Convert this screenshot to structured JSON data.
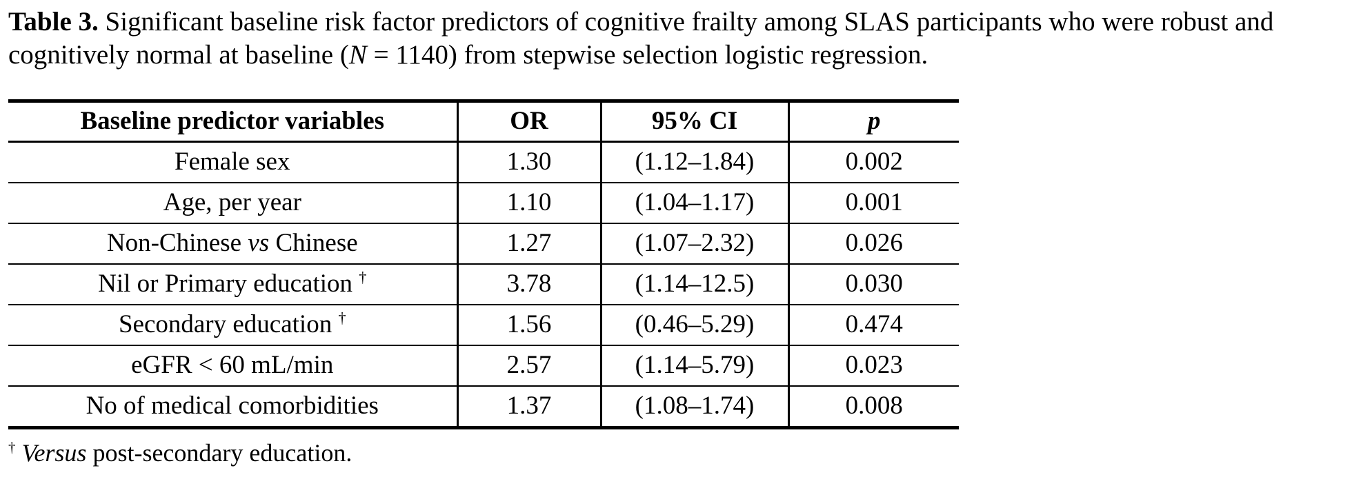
{
  "page": {
    "background": "#ffffff",
    "text_color": "#000000",
    "rule_color": "#000000"
  },
  "caption": {
    "label": "Table 3.",
    "seg1": " Significant baseline risk factor predictors of cognitive frailty among SLAS participants who were robust and cognitively normal at baseline (",
    "n_italic": "N",
    "seg2": " = 1140) from stepwise selection logistic regression."
  },
  "table": {
    "headers": {
      "predictor": "Baseline predictor variables",
      "or": "OR",
      "ci": "95% CI",
      "p": "p"
    },
    "rows": [
      {
        "pre": "Female sex",
        "italic": "",
        "post": "",
        "sup": "",
        "or": "1.30",
        "ci": "(1.12–1.84)",
        "p": "0.002"
      },
      {
        "pre": "Age, per year",
        "italic": "",
        "post": "",
        "sup": "",
        "or": "1.10",
        "ci": "(1.04–1.17)",
        "p": "0.001"
      },
      {
        "pre": "Non-Chinese ",
        "italic": "vs",
        "post": " Chinese",
        "sup": "",
        "or": "1.27",
        "ci": "(1.07–2.32)",
        "p": "0.026"
      },
      {
        "pre": "Nil or Primary education ",
        "italic": "",
        "post": "",
        "sup": "†",
        "or": "3.78",
        "ci": "(1.14–12.5)",
        "p": "0.030"
      },
      {
        "pre": "Secondary education ",
        "italic": "",
        "post": "",
        "sup": "†",
        "or": "1.56",
        "ci": "(0.46–5.29)",
        "p": "0.474"
      },
      {
        "pre": "eGFR < 60 mL/min",
        "italic": "",
        "post": "",
        "sup": "",
        "or": "2.57",
        "ci": "(1.14–5.79)",
        "p": "0.023"
      },
      {
        "pre": "No of medical comorbidities",
        "italic": "",
        "post": "",
        "sup": "",
        "or": "1.37",
        "ci": "(1.08–1.74)",
        "p": "0.008"
      }
    ]
  },
  "footnote": {
    "dagger": "†",
    "italic": "Versus",
    "text": " post-secondary education."
  }
}
